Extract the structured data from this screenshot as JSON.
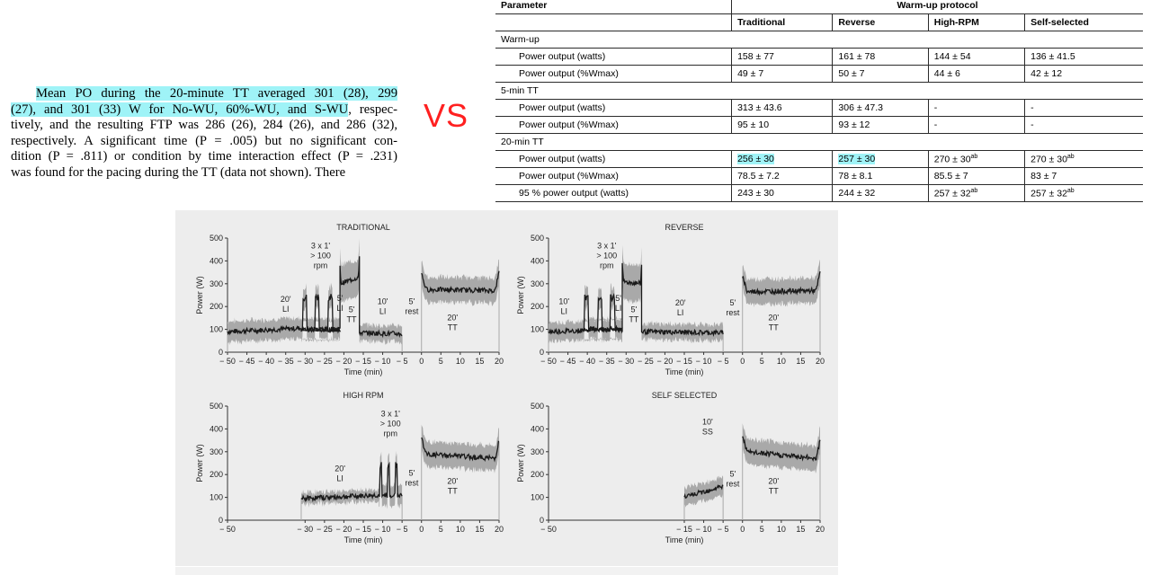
{
  "paragraph": {
    "lines": [
      {
        "pre": "",
        "hl": "Mean PO during the 20-minute TT averaged 301 (28), 299",
        "post": ""
      },
      {
        "pre": "",
        "hl": "(27), and 301 (33) W for No-WU, 60%-WU, and S-WU",
        "post": ", respec-"
      },
      {
        "pre": "tively, and the resulting FTP was 286 (26), 284 (26), and 286 (32),",
        "hl": "",
        "post": ""
      },
      {
        "pre": "respectively. A significant time (P = .005) but no significant con-",
        "hl": "",
        "post": ""
      },
      {
        "pre": "dition (P = .811) or condition by time interaction effect (P = .231)",
        "hl": "",
        "post": ""
      },
      {
        "pre": "was found for the pacing during the TT (data not shown). There",
        "hl": "",
        "post": ""
      }
    ]
  },
  "vs_label": "VS",
  "table": {
    "param_header": "Parameter",
    "group_header": "Warm-up protocol",
    "columns": [
      "Traditional",
      "Reverse",
      "High-RPM",
      "Self-selected"
    ],
    "sections": [
      {
        "title": "Warm-up",
        "rows": [
          {
            "label": "Power output (watts)",
            "cells": [
              {
                "v": "158 ± 77"
              },
              {
                "v": "161 ± 78"
              },
              {
                "v": "144 ± 54"
              },
              {
                "v": "136 ± 41.5"
              }
            ]
          },
          {
            "label": "Power output (%Wmax)",
            "cells": [
              {
                "v": "49 ± 7"
              },
              {
                "v": "50 ± 7"
              },
              {
                "v": "44 ± 6"
              },
              {
                "v": "42 ± 12"
              }
            ]
          }
        ]
      },
      {
        "title": "5-min TT",
        "rows": [
          {
            "label": "Power output (watts)",
            "cells": [
              {
                "v": "313 ± 43.6"
              },
              {
                "v": "306 ± 47.3"
              },
              {
                "v": "-"
              },
              {
                "v": "-"
              }
            ]
          },
          {
            "label": "Power output (%Wmax)",
            "cells": [
              {
                "v": "95 ± 10"
              },
              {
                "v": "93 ± 12"
              },
              {
                "v": "-"
              },
              {
                "v": "-"
              }
            ]
          }
        ]
      },
      {
        "title": "20-min TT",
        "rows": [
          {
            "label": "Power output (watts)",
            "cells": [
              {
                "v": "256 ± 30",
                "hl": true
              },
              {
                "v": "257 ± 30",
                "hl": true
              },
              {
                "v": "270 ± 30",
                "sup": "ab"
              },
              {
                "v": "270 ± 30",
                "sup": "ab"
              }
            ]
          },
          {
            "label": "Power output (%Wmax)",
            "cells": [
              {
                "v": "78.5 ± 7.2"
              },
              {
                "v": "78 ± 8.1"
              },
              {
                "v": "85.5 ± 7"
              },
              {
                "v": "83 ± 7"
              }
            ]
          },
          {
            "label": "95 % power output (watts)",
            "cells": [
              {
                "v": "243 ± 30"
              },
              {
                "v": "244 ± 32"
              },
              {
                "v": "257 ± 32",
                "sup": "ab"
              },
              {
                "v": "257 ± 32",
                "sup": "ab"
              }
            ]
          }
        ]
      }
    ]
  },
  "colors": {
    "highlight": "#9ff3f7",
    "vs": "#ff2020",
    "band": "#a9a9a9",
    "mean": "#1a1a1a",
    "figure_bg": "#ededed"
  },
  "chart_data": [
    {
      "type": "line",
      "title": "TRADITIONAL",
      "xlabel": "Time (min)",
      "ylabel": "Power (W)",
      "xlim": [
        -50,
        20
      ],
      "ylim": [
        0,
        500
      ],
      "xticks": [
        -50,
        -45,
        -40,
        -35,
        -30,
        -25,
        -20,
        -15,
        -10,
        -5,
        0,
        5,
        10,
        15,
        20
      ],
      "yticks": [
        0,
        100,
        200,
        300,
        400,
        500
      ],
      "segments": [
        {
          "label": "20' LI",
          "x": [
            -50,
            -31
          ],
          "y": [
            90,
            105
          ],
          "sd": 45
        },
        {
          "label": "3 x 1' > 100 rpm",
          "x": [
            -31,
            -21
          ],
          "y": [
            100,
            100
          ],
          "sd": 45
        },
        {
          "label": "5' LI",
          "x": [
            -31,
            -21
          ],
          "y": [
            100,
            100
          ],
          "sd": 45
        },
        {
          "label": "5' TT",
          "x": [
            -21,
            -16
          ],
          "y": [
            300,
            330
          ],
          "sd": 80
        },
        {
          "label": "10' LI",
          "x": [
            -16,
            -5
          ],
          "y": [
            85,
            80
          ],
          "sd": 35
        },
        {
          "label": "5' rest",
          "x": [
            -5,
            0
          ],
          "y": [
            0,
            0
          ],
          "sd": 0
        },
        {
          "label": "20' TT",
          "x": [
            0,
            20
          ],
          "y": [
            275,
            270
          ],
          "sd": 55
        }
      ]
    },
    {
      "type": "line",
      "title": "REVERSE",
      "xlabel": "Time (min)",
      "ylabel": "Power (W)",
      "xlim": [
        -50,
        20
      ],
      "ylim": [
        0,
        500
      ],
      "xticks": [
        -50,
        -45,
        -40,
        -35,
        -30,
        -25,
        -20,
        -15,
        -10,
        -5,
        0,
        5,
        10,
        15,
        20
      ],
      "yticks": [
        0,
        100,
        200,
        300,
        400,
        500
      ],
      "segments": [
        {
          "label": "10' LI",
          "x": [
            -50,
            -41
          ],
          "y": [
            90,
            95
          ],
          "sd": 40
        },
        {
          "label": "3 x 1' > 100 rpm",
          "x": [
            -41,
            -31
          ],
          "y": [
            100,
            100
          ],
          "sd": 45
        },
        {
          "label": "5' LI",
          "x": [
            -41,
            -31
          ],
          "y": [
            100,
            100
          ],
          "sd": 45
        },
        {
          "label": "5' TT",
          "x": [
            -31,
            -26
          ],
          "y": [
            310,
            300
          ],
          "sd": 80
        },
        {
          "label": "20' LI",
          "x": [
            -26,
            -5
          ],
          "y": [
            90,
            85
          ],
          "sd": 35
        },
        {
          "label": "5' rest",
          "x": [
            -5,
            0
          ],
          "y": [
            0,
            0
          ],
          "sd": 0
        },
        {
          "label": "20' TT",
          "x": [
            0,
            20
          ],
          "y": [
            265,
            270
          ],
          "sd": 55
        }
      ]
    },
    {
      "type": "line",
      "title": "HIGH RPM",
      "xlabel": "Time (min)",
      "ylabel": "Power (W)",
      "xlim": [
        -50,
        20
      ],
      "ylim": [
        0,
        500
      ],
      "xticks": [
        -50,
        -30,
        -25,
        -20,
        -15,
        -10,
        -5,
        0,
        5,
        10,
        15,
        20
      ],
      "yticks": [
        0,
        100,
        200,
        300,
        400,
        500
      ],
      "segments": [
        {
          "label": "20' LI",
          "x": [
            -31,
            -11
          ],
          "y": [
            95,
            110
          ],
          "sd": 25
        },
        {
          "label": "3 x 1' > 100 rpm",
          "x": [
            -11,
            -5
          ],
          "y": [
            110,
            110
          ],
          "sd": 45
        },
        {
          "label": "5' rest",
          "x": [
            -5,
            0
          ],
          "y": [
            0,
            0
          ],
          "sd": 0
        },
        {
          "label": "20' TT",
          "x": [
            0,
            20
          ],
          "y": [
            290,
            270
          ],
          "sd": 55
        }
      ]
    },
    {
      "type": "line",
      "title": "SELF SELECTED",
      "xlabel": "Time (min)",
      "ylabel": "Power (W)",
      "xlim": [
        -50,
        20
      ],
      "ylim": [
        0,
        500
      ],
      "xticks": [
        -50,
        -15,
        -10,
        -5,
        0,
        5,
        10,
        15,
        20
      ],
      "yticks": [
        0,
        100,
        200,
        300,
        400,
        500
      ],
      "segments": [
        {
          "label": "10' SS",
          "x": [
            -15,
            -5
          ],
          "y": [
            100,
            150
          ],
          "sd": 40
        },
        {
          "label": "5' rest",
          "x": [
            -5,
            0
          ],
          "y": [
            0,
            0
          ],
          "sd": 0
        },
        {
          "label": "20' TT",
          "x": [
            0,
            20
          ],
          "y": [
            300,
            270
          ],
          "sd": 55
        }
      ]
    }
  ]
}
